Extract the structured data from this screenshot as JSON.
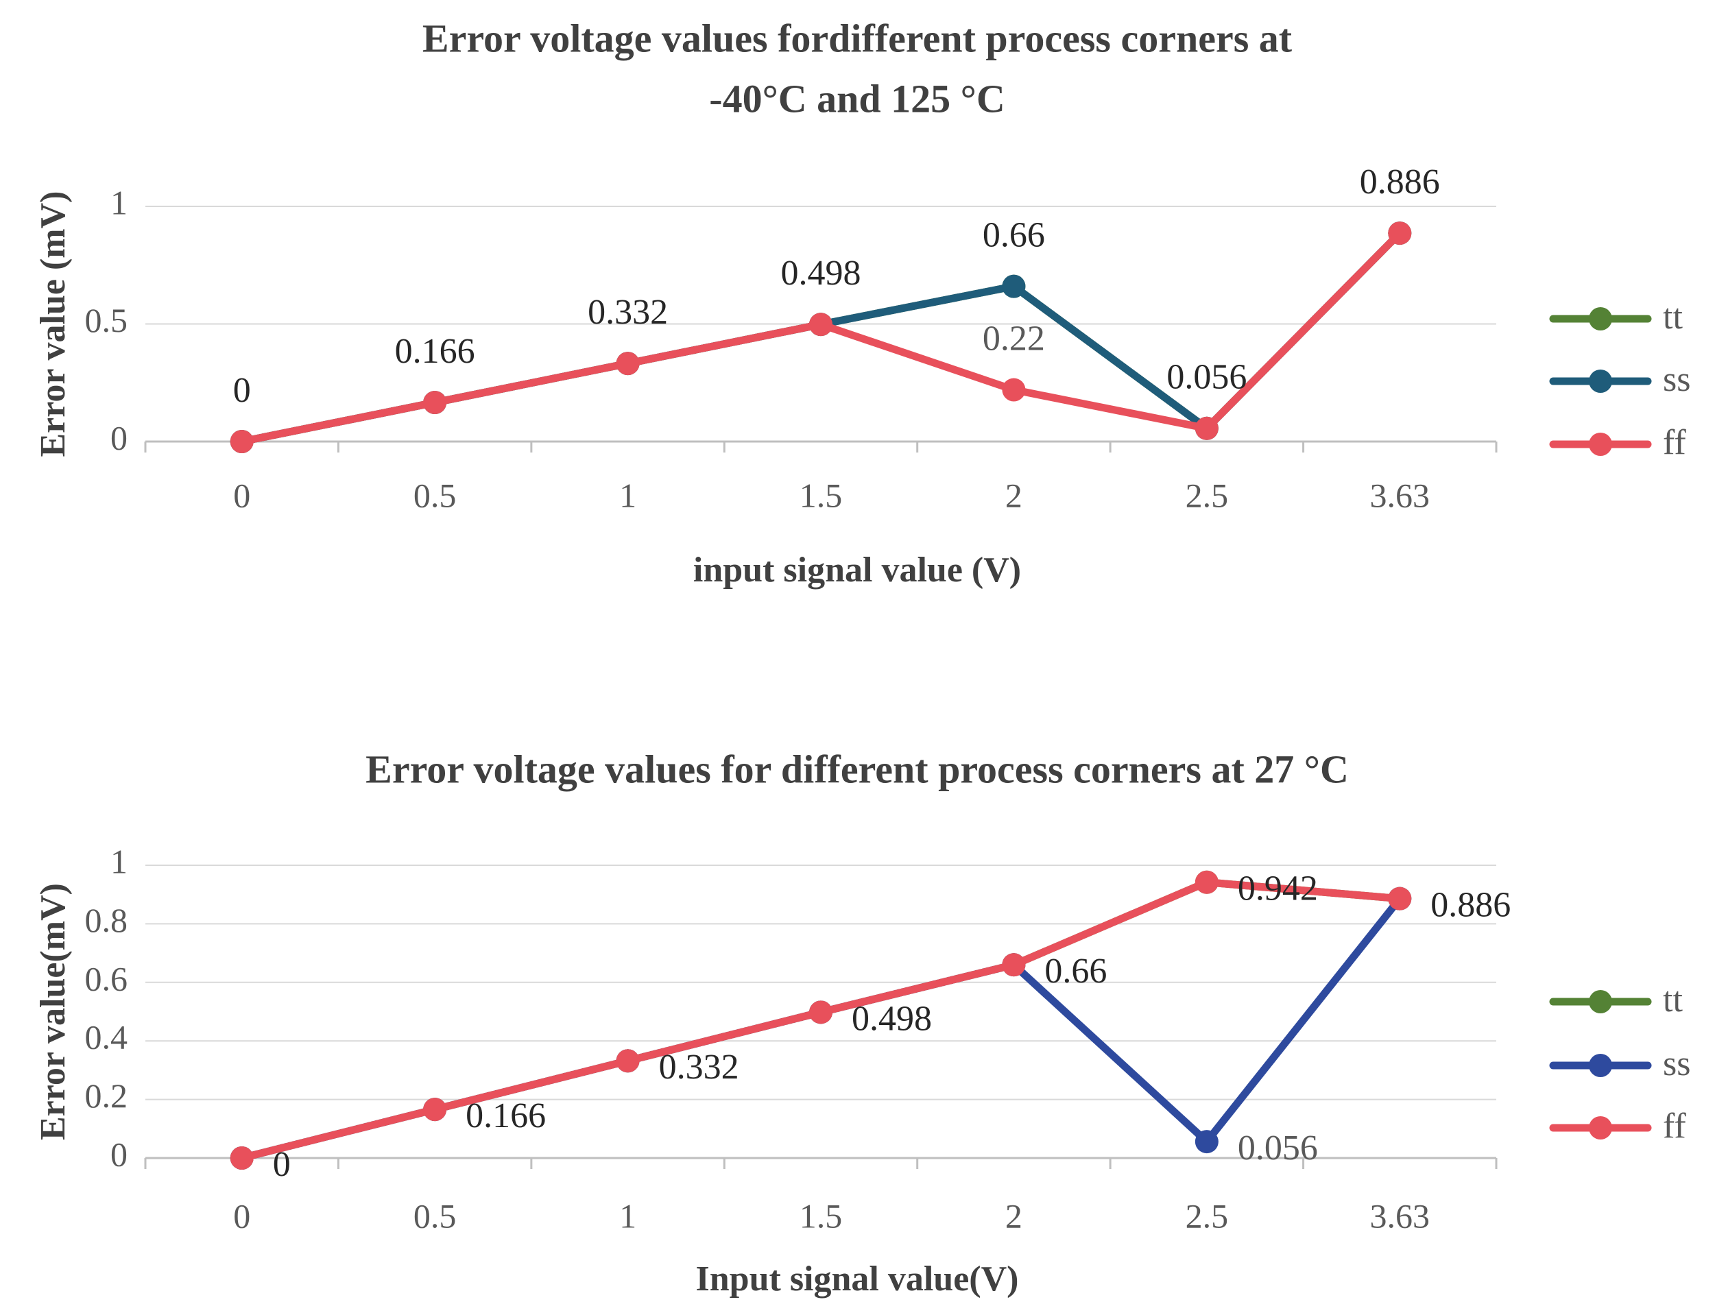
{
  "chart_data": [
    {
      "type": "line",
      "title_lines": [
        "Error voltage values fordifferent process corners at",
        "-40°C and 125 °C"
      ],
      "xlabel": "input signal value (V)",
      "ylabel": "Error value (mV)",
      "categories": [
        "0",
        "0.5",
        "1",
        "1.5",
        "2",
        "2.5",
        "3.63"
      ],
      "yticks": [
        0,
        0.5,
        1
      ],
      "ylim": [
        0,
        1
      ],
      "grid": true,
      "legend_position": "right",
      "series": [
        {
          "name": "tt",
          "color": "#548235",
          "values": [
            0,
            0.166,
            0.332,
            0.498,
            0.66,
            0.056,
            0.886
          ]
        },
        {
          "name": "ss",
          "color": "#1f5c7a",
          "values": [
            0,
            0.166,
            0.332,
            0.498,
            0.66,
            0.056,
            0.886
          ]
        },
        {
          "name": "ff",
          "color": "#e8505b",
          "values": [
            0,
            0.166,
            0.332,
            0.498,
            0.22,
            0.056,
            0.886
          ]
        }
      ],
      "data_labels": [
        {
          "text": "0",
          "x": "0",
          "y": 0,
          "pos": "above"
        },
        {
          "text": "0.166",
          "x": "0.5",
          "y": 0.166,
          "pos": "above"
        },
        {
          "text": "0.332",
          "x": "1",
          "y": 0.332,
          "pos": "above"
        },
        {
          "text": "0.498",
          "x": "1.5",
          "y": 0.498,
          "pos": "above"
        },
        {
          "text": "0.66",
          "x": "2",
          "y": 0.66,
          "pos": "above"
        },
        {
          "text": "0.22",
          "x": "2",
          "y": 0.22,
          "pos": "above",
          "style": "light"
        },
        {
          "text": "0.056",
          "x": "2.5",
          "y": 0.056,
          "pos": "above"
        },
        {
          "text": "0.886",
          "x": "3.63",
          "y": 0.886,
          "pos": "above"
        }
      ]
    },
    {
      "type": "line",
      "title_lines": [
        "Error voltage values for different process corners at 27 °C"
      ],
      "xlabel": "Input signal value(V)",
      "ylabel": "Error value(mV)",
      "categories": [
        "0",
        "0.5",
        "1",
        "1.5",
        "2",
        "2.5",
        "3.63"
      ],
      "yticks": [
        0,
        0.2,
        0.4,
        0.6,
        0.8,
        1
      ],
      "ylim": [
        0,
        1
      ],
      "grid": true,
      "legend_position": "right",
      "series": [
        {
          "name": "tt",
          "color": "#548235",
          "values": [
            0,
            0.166,
            0.332,
            0.498,
            0.66,
            0.942,
            0.886
          ]
        },
        {
          "name": "ss",
          "color": "#2e4a9e",
          "values": [
            0,
            0.166,
            0.332,
            0.498,
            0.66,
            0.056,
            0.886
          ]
        },
        {
          "name": "ff",
          "color": "#e8505b",
          "values": [
            0,
            0.166,
            0.332,
            0.498,
            0.66,
            0.942,
            0.886
          ]
        }
      ],
      "data_labels": [
        {
          "text": "0",
          "x": "0",
          "y": 0,
          "pos": "right"
        },
        {
          "text": "0.166",
          "x": "0.5",
          "y": 0.166,
          "pos": "right"
        },
        {
          "text": "0.332",
          "x": "1",
          "y": 0.332,
          "pos": "right"
        },
        {
          "text": "0.498",
          "x": "1.5",
          "y": 0.498,
          "pos": "right"
        },
        {
          "text": "0.66",
          "x": "2",
          "y": 0.66,
          "pos": "right"
        },
        {
          "text": "0.942",
          "x": "2.5",
          "y": 0.942,
          "pos": "right"
        },
        {
          "text": "0.886",
          "x": "3.63",
          "y": 0.886,
          "pos": "right"
        },
        {
          "text": "0.056",
          "x": "2.5",
          "y": 0.056,
          "pos": "right",
          "style": "light"
        }
      ]
    }
  ]
}
